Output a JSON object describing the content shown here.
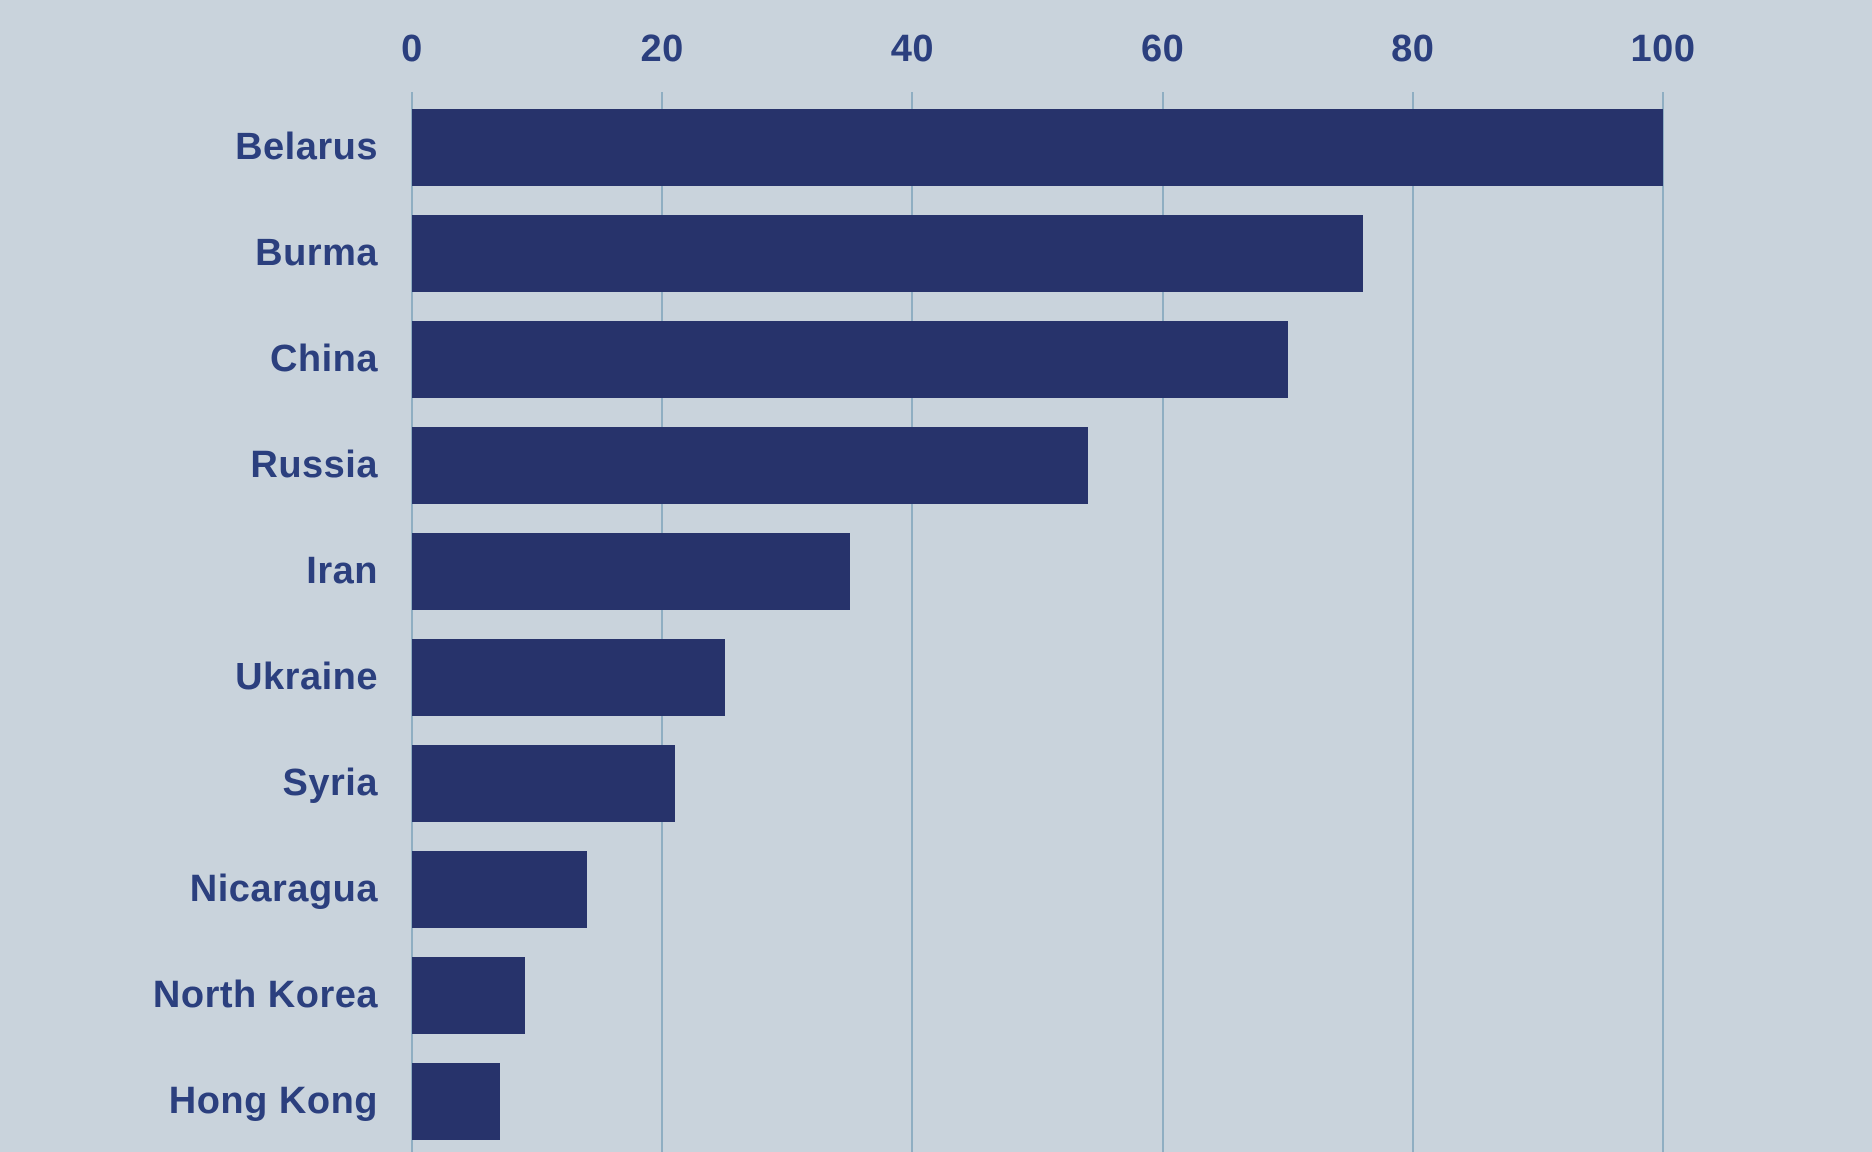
{
  "chart_data": {
    "type": "bar",
    "orientation": "horizontal",
    "title": "",
    "xlabel": "",
    "ylabel": "",
    "categories": [
      "Belarus",
      "Burma",
      "China",
      "Russia",
      "Iran",
      "Ukraine",
      "Syria",
      "Nicaragua",
      "North Korea",
      "Hong Kong"
    ],
    "values": [
      100,
      76,
      70,
      54,
      35,
      25,
      21,
      14,
      9,
      7
    ],
    "x_ticks": [
      "0",
      "20",
      "40",
      "60",
      "80",
      "100"
    ],
    "x_tick_values": [
      0,
      20,
      40,
      60,
      80,
      100
    ],
    "xlim": [
      0,
      100
    ],
    "grid": "vertical-gridlines-behind-bars",
    "legend": "none",
    "colors": {
      "background": "#C9D3DC",
      "bar": "#27336B",
      "gridline": "#8FAEC2",
      "label_text": "#2B3F7E"
    }
  }
}
